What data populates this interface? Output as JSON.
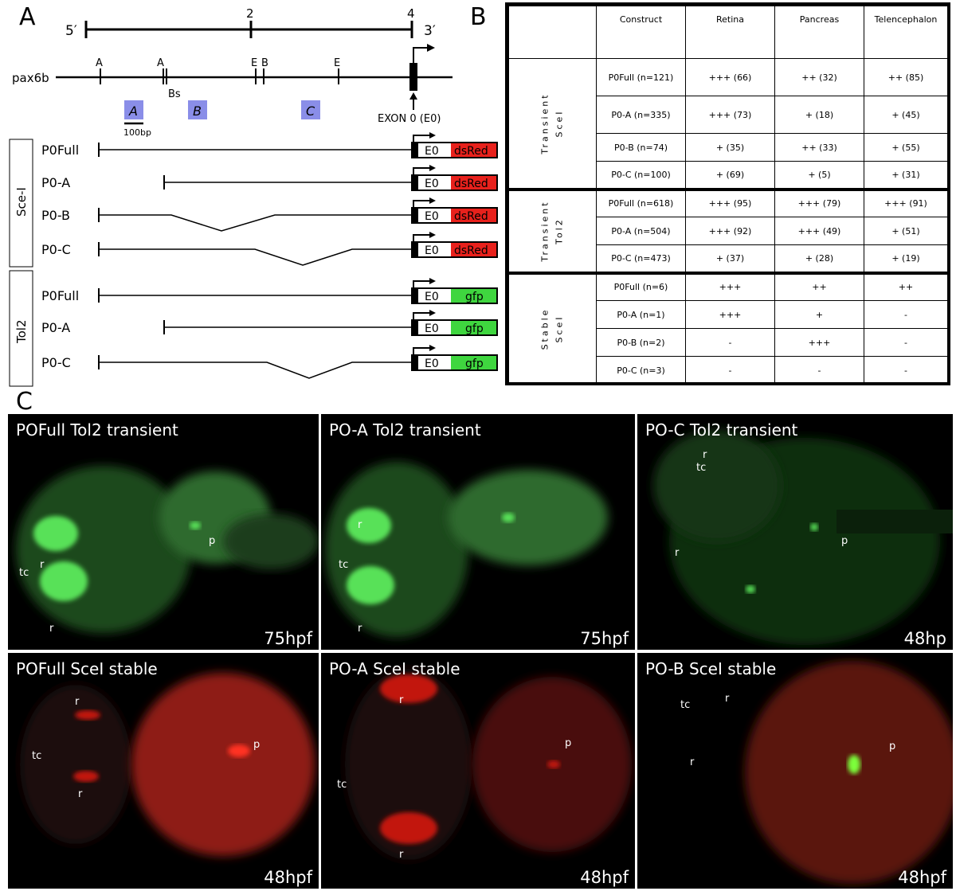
{
  "panel_labels": {
    "a": "A",
    "b": "B",
    "c": "C"
  },
  "panel_a": {
    "scale": {
      "prime5": "5′",
      "prime3": "3′",
      "mark2": "2",
      "mark4": "4"
    },
    "gene_name": "pax6b",
    "sites": {
      "a1": "A",
      "a2": "A",
      "bs": "Bs",
      "e1": "E",
      "b1": "B",
      "e2": "E"
    },
    "exon_label": "EXON 0 (E0)",
    "region_labels": [
      "A",
      "B",
      "C"
    ],
    "scale_bar": "100bp",
    "group_labels": {
      "scei": "Sce-I",
      "tol2": "Tol2"
    },
    "constructs": [
      {
        "name": "P0Full",
        "exon": "E0",
        "reporter": "dsRed"
      },
      {
        "name": "P0-A",
        "exon": "E0",
        "reporter": "dsRed"
      },
      {
        "name": "P0-B",
        "exon": "E0",
        "reporter": "dsRed"
      },
      {
        "name": "P0-C",
        "exon": "E0",
        "reporter": "dsRed"
      },
      {
        "name": "P0Full",
        "exon": "E0",
        "reporter": "gfp"
      },
      {
        "name": "P0-A",
        "exon": "E0",
        "reporter": "gfp"
      },
      {
        "name": "P0-C",
        "exon": "E0",
        "reporter": "gfp"
      }
    ],
    "colors": {
      "dsred": "#e8211c",
      "gfp": "#3fd63f",
      "region_fill": "#8a8ee8"
    }
  },
  "panel_b": {
    "headers": [
      "Construct",
      "Retina",
      "Pancreas",
      "Telencephalon"
    ],
    "groups": [
      {
        "label": "Transient\nSceI",
        "rows": [
          [
            "P0Full (n=121)",
            "+++ (66)",
            "++ (32)",
            "++ (85)"
          ],
          [
            "P0-A (n=335)",
            "+++ (73)",
            "+ (18)",
            "+ (45)"
          ],
          [
            "P0-B (n=74)",
            "+ (35)",
            "++ (33)",
            "+ (55)"
          ],
          [
            "P0-C (n=100)",
            "+ (69)",
            "+ (5)",
            "+ (31)"
          ]
        ]
      },
      {
        "label": "Transient\nTol2",
        "rows": [
          [
            "P0Full (n=618)",
            "+++ (95)",
            "+++ (79)",
            "+++ (91)"
          ],
          [
            "P0-A (n=504)",
            "+++ (92)",
            "+++ (49)",
            "+ (51)"
          ],
          [
            "P0-C (n=473)",
            "+ (37)",
            "+ (28)",
            "+ (19)"
          ]
        ]
      },
      {
        "label": "Stable\nSceI",
        "rows": [
          [
            "P0Full (n=6)",
            "+++",
            "++",
            "++"
          ],
          [
            "P0-A (n=1)",
            "+++",
            "+",
            "-"
          ],
          [
            "P0-B (n=2)",
            "-",
            "+++",
            "-"
          ],
          [
            "P0-C (n=3)",
            "-",
            "-",
            "-"
          ]
        ]
      }
    ]
  },
  "panel_c": {
    "tiles": [
      {
        "title": "POFull Tol2 transient",
        "time": "75hpf",
        "labels": [
          "r",
          "tc",
          "r",
          "p"
        ]
      },
      {
        "title": "PO-A Tol2 transient",
        "time": "75hpf",
        "labels": [
          "r",
          "tc",
          "r",
          "p"
        ]
      },
      {
        "title": "PO-C Tol2 transient",
        "time": "48hp",
        "labels": [
          "tc",
          "r",
          "r",
          "p"
        ]
      },
      {
        "title": "POFull SceI stable",
        "time": "48hpf",
        "labels": [
          "r",
          "tc",
          "r",
          "p"
        ]
      },
      {
        "title": "PO-A SceI stable",
        "time": "48hpf",
        "labels": [
          "r",
          "tc",
          "r",
          "p"
        ]
      },
      {
        "title": "PO-B SceI stable",
        "time": "48hpf",
        "labels": [
          "tc",
          "r",
          "r",
          "p"
        ]
      }
    ]
  }
}
